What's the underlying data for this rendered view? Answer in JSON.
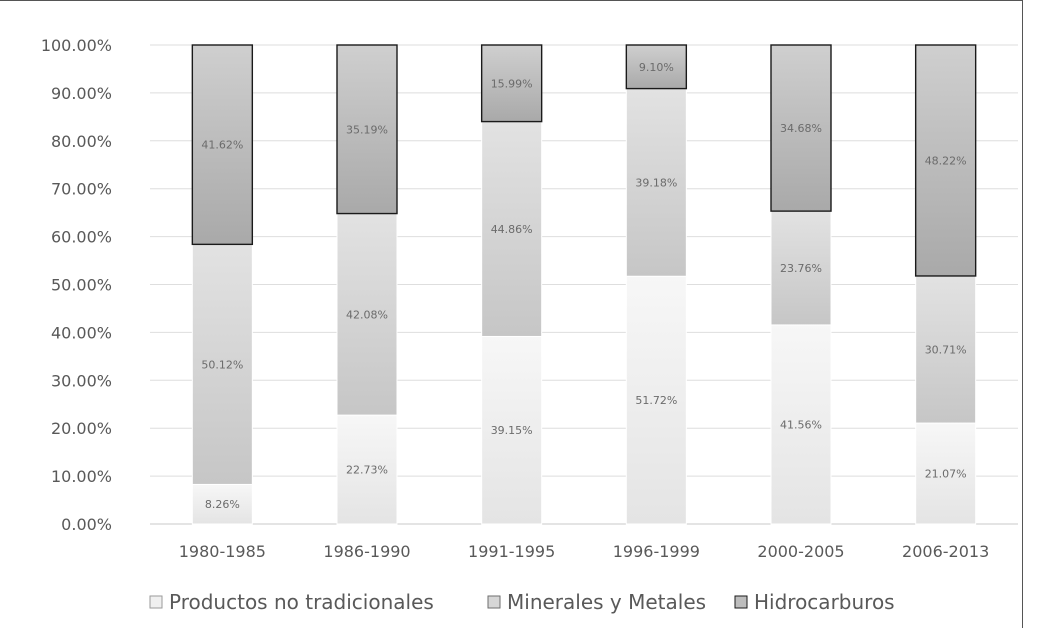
{
  "chart_data": {
    "type": "bar",
    "stacked": true,
    "categories": [
      "1980-1985",
      "1986-1990",
      "1991-1995",
      "1996-1999",
      "2000-2005",
      "2006-2013"
    ],
    "series": [
      {
        "name": "Productos no tradicionales",
        "values": [
          8.26,
          22.73,
          39.15,
          51.72,
          41.56,
          21.07
        ],
        "labels": [
          "8.26%",
          "22.73%",
          "39.15%",
          "51.72%",
          "41.56%",
          "21.07%"
        ]
      },
      {
        "name": "Minerales y Metales",
        "values": [
          50.12,
          42.08,
          44.86,
          39.18,
          23.76,
          30.71
        ],
        "labels": [
          "50.12%",
          "42.08%",
          "44.86%",
          "39.18%",
          "23.76%",
          "30.71%"
        ]
      },
      {
        "name": "Hidrocarburos",
        "values": [
          41.62,
          35.19,
          15.99,
          9.1,
          34.68,
          48.22
        ],
        "labels": [
          "41.62%",
          "35.19%",
          "15.99%",
          "9.10%",
          "34.68%",
          "48.22%"
        ]
      }
    ],
    "yticks": [
      "0.00%",
      "10.00%",
      "20.00%",
      "30.00%",
      "40.00%",
      "50.00%",
      "60.00%",
      "70.00%",
      "80.00%",
      "90.00%",
      "100.00%"
    ],
    "ylim": [
      0,
      100
    ],
    "grid": true,
    "legend": "bottom",
    "title": "",
    "xlabel": "",
    "ylabel": ""
  }
}
